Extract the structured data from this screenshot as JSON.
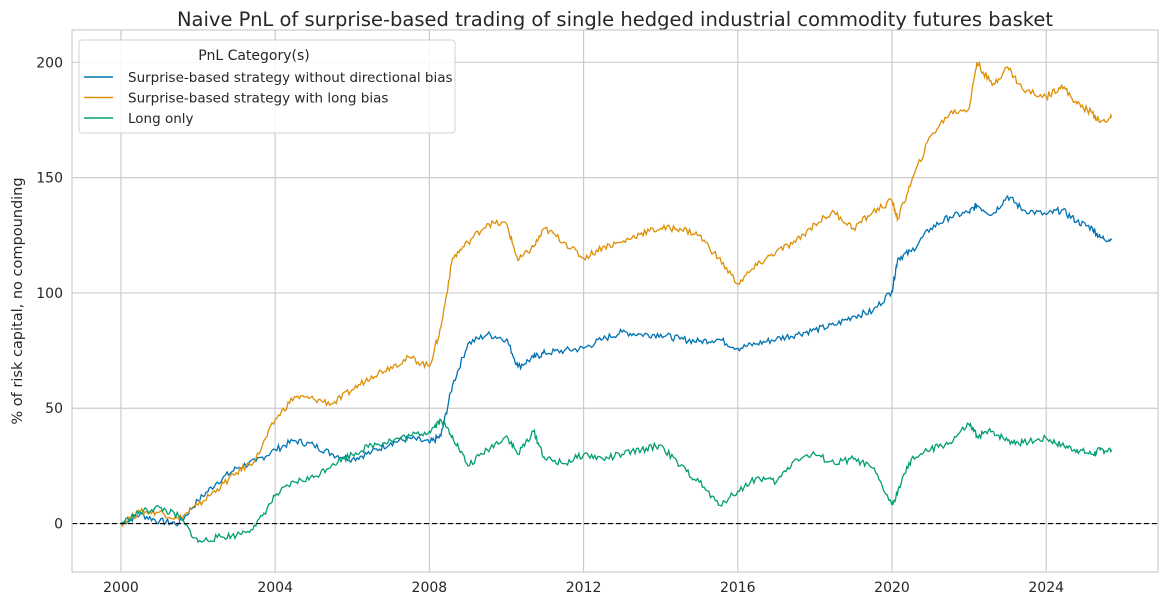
{
  "chart_data": {
    "type": "line",
    "title": "Naive PnL of surprise-based trading of single hedged industrial commodity futures basket",
    "xlabel": "",
    "ylabel": "% of risk capital, no compounding",
    "xlim": [
      1998.73,
      2026.9
    ],
    "ylim": [
      -21,
      214
    ],
    "xticks": [
      2000,
      2004,
      2008,
      2012,
      2016,
      2020,
      2024
    ],
    "yticks": [
      0,
      50,
      100,
      150,
      200
    ],
    "grid": true,
    "zero_line": "dashed black at 0",
    "legend": {
      "title": "PnL Category(s)",
      "placement": "top-left"
    },
    "x": [
      2000,
      2000.5,
      2001,
      2001.5,
      2002,
      2002.5,
      2003,
      2003.5,
      2004,
      2004.5,
      2005,
      2005.5,
      2006,
      2006.5,
      2007,
      2007.5,
      2008,
      2008.3,
      2008.6,
      2009,
      2009.5,
      2010,
      2010.3,
      2010.7,
      2011,
      2011.5,
      2012,
      2012.5,
      2013,
      2013.5,
      2014,
      2014.5,
      2015,
      2015.5,
      2016,
      2016.5,
      2017,
      2017.5,
      2018,
      2018.5,
      2019,
      2019.5,
      2020,
      2020.15,
      2020.5,
      2021,
      2021.5,
      2022,
      2022.2,
      2022.6,
      2023,
      2023.4,
      2024,
      2024.4,
      2024.8,
      2025.2,
      2025.4,
      2025.7
    ],
    "series": [
      {
        "name": "Surprise-based strategy without directional bias",
        "color": "#0173b2",
        "values": [
          0,
          4,
          1,
          0,
          10,
          18,
          24,
          27,
          32,
          36,
          34,
          30,
          28,
          31,
          35,
          37,
          35,
          38,
          60,
          78,
          82,
          80,
          68,
          72,
          74,
          75,
          76,
          80,
          83,
          82,
          82,
          80,
          79,
          80,
          76,
          78,
          80,
          82,
          84,
          86,
          90,
          92,
          101,
          115,
          118,
          128,
          133,
          135,
          138,
          134,
          142,
          136,
          134,
          136,
          131,
          128,
          124,
          123
        ]
      },
      {
        "name": "Surprise-based strategy with long bias",
        "color": "#de8f05",
        "values": [
          0,
          5,
          5,
          2,
          8,
          15,
          22,
          28,
          45,
          55,
          54,
          52,
          58,
          64,
          68,
          72,
          68,
          85,
          115,
          122,
          130,
          130,
          114,
          120,
          128,
          122,
          115,
          120,
          122,
          126,
          128,
          128,
          125,
          115,
          104,
          112,
          118,
          122,
          130,
          135,
          128,
          135,
          140,
          132,
          148,
          168,
          178,
          180,
          200,
          190,
          198,
          188,
          185,
          190,
          182,
          178,
          174,
          176
        ]
      },
      {
        "name": "Long only",
        "color": "#029e73",
        "values": [
          0,
          5,
          7,
          3,
          -8,
          -6,
          -5,
          -1,
          12,
          18,
          20,
          26,
          30,
          34,
          36,
          38,
          40,
          45,
          38,
          25,
          32,
          38,
          30,
          40,
          28,
          26,
          30,
          28,
          30,
          32,
          34,
          25,
          18,
          8,
          14,
          20,
          18,
          28,
          30,
          26,
          28,
          24,
          8,
          14,
          28,
          32,
          35,
          43,
          38,
          40,
          36,
          35,
          37,
          34,
          32,
          30,
          32,
          32
        ]
      }
    ]
  }
}
